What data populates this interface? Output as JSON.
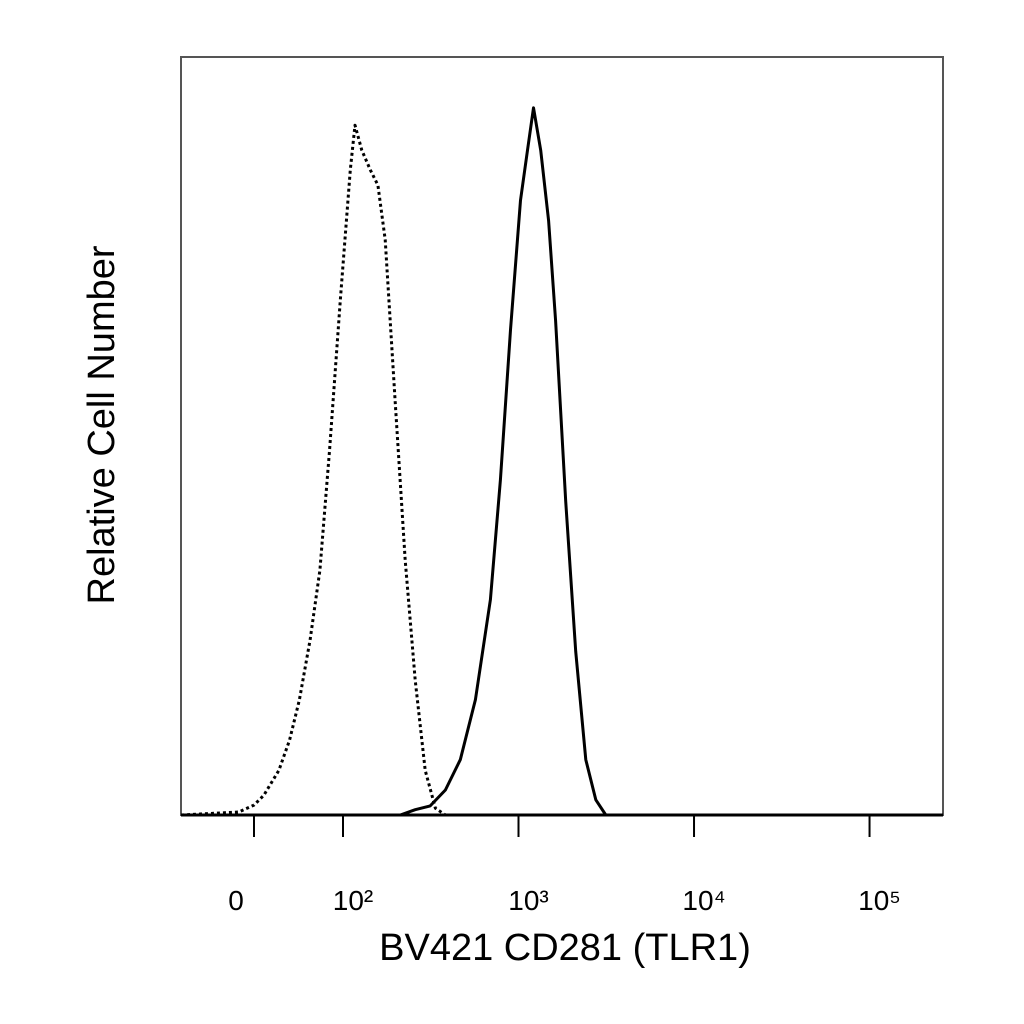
{
  "chart_data": {
    "type": "line",
    "xlabel": "BV421 CD281 (TLR1)",
    "ylabel": "Relative Cell Number",
    "xlim": [
      -82,
      262144
    ],
    "ylim": [
      0,
      100
    ],
    "xticks": [
      0,
      {
        "value": 100,
        "label": "10²"
      },
      {
        "value": 1000,
        "label": "10³"
      },
      {
        "value": 10000,
        "label": "10⁴"
      },
      {
        "value": 100000,
        "label": "10⁵"
      }
    ],
    "series": [
      {
        "color": "#000000",
        "style": "dotted",
        "x": [
          -82,
          -17,
          0,
          11,
          28,
          40,
          51,
          63,
          74,
          85,
          97,
          110,
          117,
          128,
          143,
          158,
          174,
          198,
          226,
          258,
          294,
          336,
          383,
          262144
        ],
        "values": [
          0,
          0.4,
          1.3,
          2.6,
          5.9,
          9.9,
          15.2,
          23.1,
          32.3,
          48.2,
          67.9,
          85.1,
          91.0,
          87.7,
          85.1,
          83.1,
          75.9,
          54.7,
          33.6,
          17.8,
          5.9,
          0.9,
          0,
          0
        ]
      },
      {
        "color": "#000000",
        "style": "solid",
        "x": [
          -82,
          212,
          258,
          314,
          383,
          466,
          568,
          692,
          789,
          900,
          1026,
          1125,
          1218,
          1337,
          1484,
          1626,
          1857,
          2118,
          2416,
          2756,
          3143,
          262144
        ],
        "values": [
          0,
          0,
          0.7,
          1.2,
          3.3,
          7.3,
          15.2,
          28.4,
          44.2,
          64.0,
          81.1,
          87.7,
          93.3,
          87.7,
          78.4,
          65.2,
          41.4,
          21.6,
          7.3,
          2.0,
          0,
          0
        ]
      }
    ]
  }
}
